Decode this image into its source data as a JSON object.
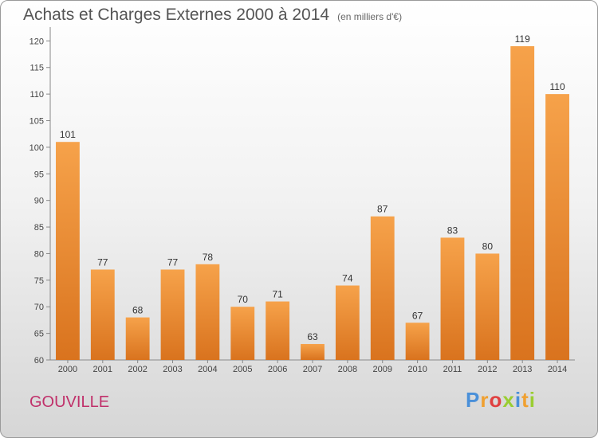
{
  "chart_data": {
    "type": "bar",
    "title": "Achats et Charges Externes 2000 à 2014",
    "subtitle": "(en milliers d'€)",
    "categories": [
      "2000",
      "2001",
      "2002",
      "2003",
      "2004",
      "2005",
      "2006",
      "2007",
      "2008",
      "2009",
      "2010",
      "2011",
      "2012",
      "2013",
      "2014"
    ],
    "values": [
      101,
      77,
      68,
      77,
      78,
      70,
      71,
      63,
      74,
      87,
      67,
      83,
      80,
      119,
      110
    ],
    "ylim": [
      60,
      122
    ],
    "yticks": [
      60,
      65,
      70,
      75,
      80,
      85,
      90,
      95,
      100,
      105,
      110,
      115,
      120
    ],
    "grid": false,
    "bar_color": "#f0943a",
    "xlabel": "",
    "ylabel": ""
  },
  "town": "GOUVILLE",
  "logo": {
    "letters": [
      "P",
      "r",
      "o",
      "x",
      "i",
      "t",
      "i"
    ],
    "colors": [
      "#4a90d9",
      "#f0a030",
      "#e04040",
      "#9acd32",
      "#4a90d9",
      "#f0a030",
      "#9acd32"
    ]
  }
}
